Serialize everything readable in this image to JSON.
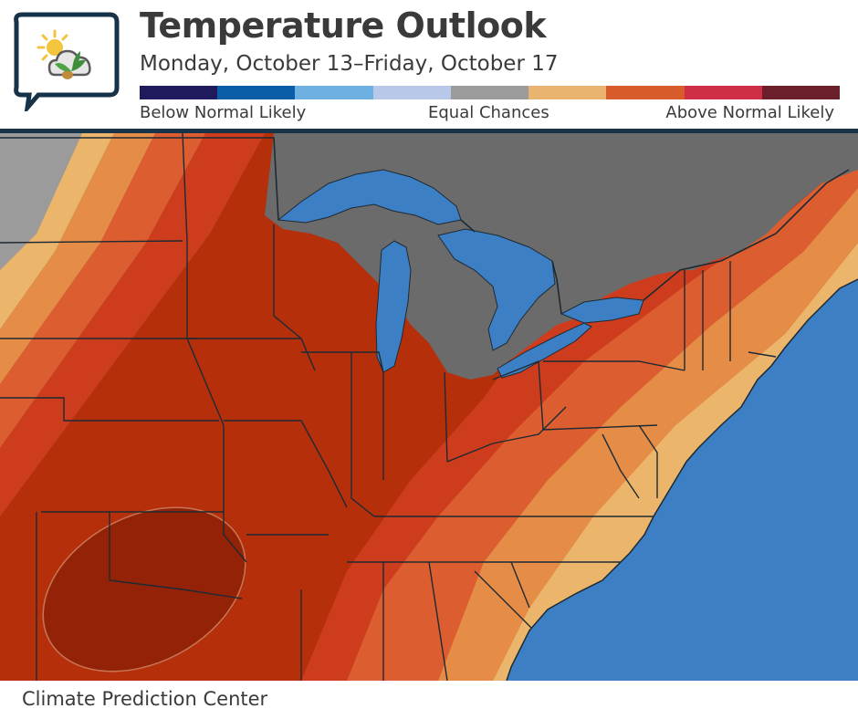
{
  "header": {
    "title": "Temperature Outlook",
    "subtitle": "Monday, October 13–Friday, October 17"
  },
  "legend": {
    "colors": [
      "#1f1a5c",
      "#0a5ea8",
      "#6fb0e2",
      "#b7c8e8",
      "#9b9b9b",
      "#e8b46f",
      "#d85b2c",
      "#cf2e45",
      "#6b1f2a"
    ],
    "label_left": "Below Normal Likely",
    "label_middle": "Equal Chances",
    "label_right": "Above Normal Likely"
  },
  "map": {
    "colors": {
      "water": "#3c7fc4",
      "canada": "#6b6b6b",
      "equal_chances": "#9b9b9b",
      "above_33_40": "#ecb56c",
      "above_40_50": "#e58c47",
      "above_50_60": "#dc5d30",
      "above_60_70": "#cd3d1d",
      "above_70_80": "#b52f0b",
      "above_80_90": "#922207"
    }
  },
  "footer": {
    "credit": "Climate Prediction Center"
  }
}
